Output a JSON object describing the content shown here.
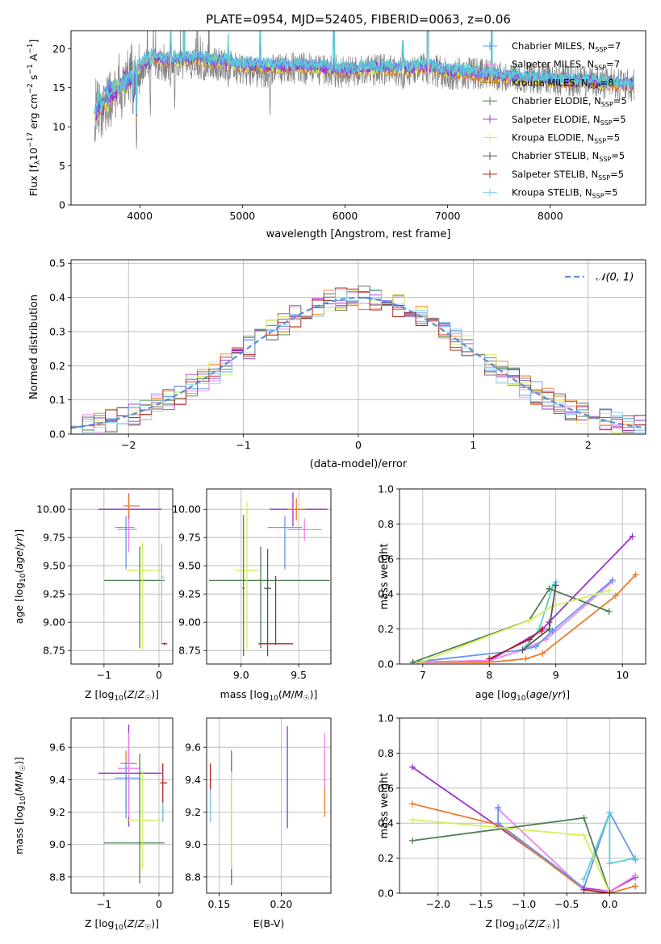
{
  "figure": {
    "title": "PLATE=0954, MJD=52405, FIBERID=0063, z=0.06"
  },
  "chart_data": [
    {
      "id": "spectrum",
      "type": "line",
      "xlabel": "wavelength [Angstrom, rest frame]",
      "ylabel": "Flux [f_λ 10^-17 erg cm^-2 s^-1 Å^-1]",
      "xlim": [
        3330,
        8930
      ],
      "ylim": [
        0,
        22.3
      ],
      "xticks": [
        4000,
        5000,
        6000,
        7000,
        8000
      ],
      "yticks": [
        0,
        5,
        10,
        15,
        20
      ],
      "grid": false,
      "legend_position": "top-right",
      "observed_color": "#808080",
      "observed_anchors": [
        [
          3560,
          11.5
        ],
        [
          3700,
          13
        ],
        [
          3800,
          14.5
        ],
        [
          3900,
          16.5
        ],
        [
          4000,
          17
        ],
        [
          4100,
          18.3
        ],
        [
          4300,
          17.5
        ],
        [
          4500,
          18
        ],
        [
          4800,
          18
        ],
        [
          5000,
          17.3
        ],
        [
          5200,
          17
        ],
        [
          5500,
          17.5
        ],
        [
          5800,
          17.3
        ],
        [
          6000,
          17
        ],
        [
          6300,
          17.3
        ],
        [
          6600,
          17
        ],
        [
          6800,
          17.5
        ],
        [
          7000,
          16.8
        ],
        [
          7200,
          16.8
        ],
        [
          7500,
          16.5
        ],
        [
          7800,
          16.3
        ],
        [
          8100,
          16
        ],
        [
          8400,
          15.7
        ],
        [
          8820,
          15.3
        ]
      ],
      "model_anchors": [
        [
          3560,
          12
        ],
        [
          3700,
          14
        ],
        [
          3850,
          15.5
        ],
        [
          3950,
          17
        ],
        [
          4100,
          19
        ],
        [
          4300,
          18.5
        ],
        [
          4500,
          18.8
        ],
        [
          4800,
          18.5
        ],
        [
          5000,
          18
        ],
        [
          5300,
          17.8
        ],
        [
          5600,
          17.9
        ],
        [
          6000,
          17.3
        ],
        [
          6300,
          17.6
        ],
        [
          6600,
          17.5
        ],
        [
          6800,
          17.8
        ],
        [
          7000,
          17.2
        ],
        [
          7200,
          17
        ],
        [
          7500,
          16.5
        ],
        [
          7800,
          16.3
        ],
        [
          8100,
          16
        ],
        [
          8400,
          15.8
        ],
        [
          8820,
          15.4
        ]
      ],
      "absorption_dips": [
        [
          3934,
          0.5
        ],
        [
          3969,
          0.3
        ],
        [
          4102,
          0.6
        ],
        [
          4300,
          0.8
        ],
        [
          4340,
          0.7
        ],
        [
          4431,
          6
        ],
        [
          4861,
          0.8
        ],
        [
          5175,
          1.2
        ],
        [
          5270,
          0.6
        ],
        [
          5890,
          1.0
        ],
        [
          6563,
          0.8
        ],
        [
          6810,
          3
        ],
        [
          7430,
          3
        ]
      ],
      "models": [
        {
          "name": "Chabrier MILES",
          "nssp": "7",
          "color": "#6495ed"
        },
        {
          "name": "Salpeter MILES",
          "nssp": "7",
          "color": "#ee82ee"
        },
        {
          "name": "Kroupa MILES",
          "nssp": "8",
          "color": "#b8860b"
        },
        {
          "name": "Chabrier ELODIE",
          "nssp": "5",
          "color": "#4f7f4f"
        },
        {
          "name": "Salpeter ELODIE",
          "nssp": "5",
          "color": "#9932cc"
        },
        {
          "name": "Kroupa ELODIE",
          "nssp": "5",
          "color": "#d4f05a"
        },
        {
          "name": "Chabrier STELIB",
          "nssp": "5",
          "color": "#555555"
        },
        {
          "name": "Salpeter STELIB",
          "nssp": "5",
          "color": "#b22222"
        },
        {
          "name": "Kroupa STELIB",
          "nssp": "5",
          "color": "#87ceeb"
        }
      ],
      "line_colors_drawn": [
        "#e87d2a",
        "#d4f05a",
        "#9932cc",
        "#6495ed",
        "#5aced4"
      ]
    },
    {
      "id": "residuals",
      "type": "histogram",
      "xlabel": "(data-model)/error",
      "ylabel": "Normed distribution",
      "xlim": [
        -2.5,
        2.5
      ],
      "ylim": [
        0,
        0.51
      ],
      "xticks": [
        -2,
        -1,
        0,
        1,
        2
      ],
      "yticks": [
        0.0,
        0.1,
        0.2,
        0.3,
        0.4,
        0.5
      ],
      "grid": true,
      "legend_position": "top-right",
      "reference_label": "𝒩(0, 1)",
      "reference_color": "#5b8fd6",
      "bin_width": 0.1,
      "bin_start": -2.5,
      "series_colors": [
        "#6495ed",
        "#ee82ee",
        "#e87d2a",
        "#4f7f4f",
        "#9932cc",
        "#d4f05a",
        "#555555",
        "#b22222",
        "#87ceeb"
      ]
    },
    {
      "id": "age-vs-Z",
      "type": "errorbar",
      "xlabel": "Z [log10(Z/Z☉)]",
      "ylabel": "age  [log10(age/yr)]",
      "xlim": [
        -1.6,
        0.25
      ],
      "ylim": [
        8.63,
        10.18
      ],
      "xticks": [
        -1,
        0
      ],
      "yticks": [
        8.75,
        9.0,
        9.25,
        9.5,
        9.75,
        10.0
      ],
      "grid": true,
      "points": [
        {
          "color": "#9932cc",
          "x": -0.55,
          "xerr": [
            0.55,
            0.6
          ],
          "y": 10.0,
          "yerr": [
            0.12,
            0.14
          ]
        },
        {
          "color": "#e87d2a",
          "x": -0.55,
          "xerr": [
            0.1,
            0.2
          ],
          "y": 10.03,
          "yerr": [
            0.1,
            0.1
          ]
        },
        {
          "color": "#ee82ee",
          "x": -0.55,
          "xerr": [
            0.2,
            0.15
          ],
          "y": 9.82,
          "yerr": [
            0.2,
            0.1
          ]
        },
        {
          "color": "#6495ed",
          "x": -0.6,
          "xerr": [
            0.2,
            0.15
          ],
          "y": 9.84,
          "yerr": [
            0.37,
            0.1
          ]
        },
        {
          "color": "#4f7f4f",
          "x": -0.35,
          "xerr": [
            0.65,
            0.45
          ],
          "y": 9.37,
          "yerr": [
            0.6,
            0.3
          ]
        },
        {
          "color": "#d4f05a",
          "x": -0.3,
          "xerr": [
            0.3,
            0.35
          ],
          "y": 9.46,
          "yerr": [
            0.7,
            0.25
          ]
        },
        {
          "color": "#87ceeb",
          "x": 0.05,
          "xerr": [
            0.02,
            0.05
          ],
          "y": 9.4,
          "yerr": [
            0.6,
            0.3
          ]
        },
        {
          "color": "#b22222",
          "x": 0.1,
          "xerr": [
            0.05,
            0.05
          ],
          "y": 8.81,
          "yerr": [
            0.01,
            0.01
          ]
        }
      ]
    },
    {
      "id": "age-vs-mass",
      "type": "errorbar",
      "xlabel": "mass [log10(M/M☉)]",
      "ylabel": "",
      "xlim": [
        8.7,
        9.78
      ],
      "ylim": [
        8.63,
        10.18
      ],
      "xticks": [
        9.0,
        9.5
      ],
      "yticks": [
        8.75,
        9.0,
        9.25,
        9.5,
        9.75,
        10.0
      ],
      "grid": true,
      "points": [
        {
          "color": "#9932cc",
          "x": 9.45,
          "xerr": [
            0.2,
            0.3
          ],
          "y": 10.0,
          "yerr": [
            0.15,
            0.15
          ]
        },
        {
          "color": "#e87d2a",
          "x": 9.48,
          "xerr": [
            0.08,
            0.08
          ],
          "y": 10.0,
          "yerr": [
            0.1,
            0.1
          ]
        },
        {
          "color": "#ee82ee",
          "x": 9.55,
          "xerr": [
            0.15,
            0.15
          ],
          "y": 9.82,
          "yerr": [
            0.1,
            0.1
          ]
        },
        {
          "color": "#6495ed",
          "x": 9.38,
          "xerr": [
            0.15,
            0.15
          ],
          "y": 9.84,
          "yerr": [
            0.37,
            0.1
          ]
        },
        {
          "color": "#4f7f4f",
          "x": 9.17,
          "xerr": [
            0.45,
            0.6
          ],
          "y": 9.37,
          "yerr": [
            0.6,
            0.3
          ]
        },
        {
          "color": "#d4f05a",
          "x": 9.05,
          "xerr": [
            0.1,
            0.1
          ],
          "y": 9.46,
          "yerr": [
            0.7,
            0.6
          ]
        },
        {
          "color": "#555555",
          "x": 9.23,
          "xerr": [
            0.03,
            0.03
          ],
          "y": 9.3,
          "yerr": [
            0.6,
            0.35
          ]
        },
        {
          "color": "#4f7f4f",
          "x": 9.02,
          "xerr": [
            0.01,
            0.01
          ],
          "y": 9.3,
          "yerr": [
            0.6,
            0.65
          ]
        },
        {
          "color": "#b22222",
          "x": 9.3,
          "xerr": [
            0.15,
            0.15
          ],
          "y": 8.81,
          "yerr": [
            0.01,
            0.6
          ]
        }
      ]
    },
    {
      "id": "weight-vs-age",
      "type": "line",
      "xlabel": "age  [log10(age/yr)]",
      "ylabel": "mass weight",
      "xlim": [
        6.65,
        10.35
      ],
      "ylim": [
        0,
        1
      ],
      "xticks": [
        7,
        8,
        9,
        10
      ],
      "yticks": [
        0.0,
        0.2,
        0.4,
        0.6,
        0.8,
        1.0
      ],
      "grid": true,
      "series": [
        {
          "color": "#9932cc",
          "x": [
            6.85,
            8.0,
            8.78,
            8.9,
            10.15
          ],
          "y": [
            0.01,
            0.02,
            0.19,
            0.24,
            0.73
          ]
        },
        {
          "color": "#e87d2a",
          "x": [
            6.85,
            8.0,
            8.55,
            8.8,
            9.9,
            10.2
          ],
          "y": [
            0.01,
            0.01,
            0.03,
            0.06,
            0.39,
            0.51
          ]
        },
        {
          "color": "#ee82ee",
          "x": [
            6.85,
            8.0,
            8.5,
            8.85,
            9.85
          ],
          "y": [
            0.01,
            0.02,
            0.08,
            0.14,
            0.47
          ]
        },
        {
          "color": "#6495ed",
          "x": [
            6.85,
            8.5,
            8.7,
            8.95,
            9.85
          ],
          "y": [
            0.01,
            0.08,
            0.1,
            0.19,
            0.48
          ]
        },
        {
          "color": "#5aced4",
          "x": [
            8.55,
            8.75,
            8.95,
            9.0
          ],
          "y": [
            0.1,
            0.2,
            0.44,
            0.47
          ]
        },
        {
          "color": "#4f7f4f",
          "x": [
            6.85,
            8.6,
            8.9,
            9.8
          ],
          "y": [
            0.01,
            0.25,
            0.43,
            0.3
          ]
        },
        {
          "color": "#d4f05a",
          "x": [
            6.9,
            8.6,
            8.95,
            9.8
          ],
          "y": [
            0.0,
            0.25,
            0.33,
            0.42
          ]
        },
        {
          "color": "#555555",
          "x": [
            8.5,
            8.9,
            9.0
          ],
          "y": [
            0.08,
            0.2,
            0.45
          ]
        },
        {
          "color": "#b22222",
          "x": [
            8.0,
            8.6,
            8.8
          ],
          "y": [
            0.03,
            0.14,
            0.2
          ]
        }
      ]
    },
    {
      "id": "mass-vs-Z",
      "type": "errorbar",
      "xlabel": "Z [log10(Z/Z☉)]",
      "ylabel": "mass [log10(M/M☉)]",
      "xlim": [
        -1.6,
        0.25
      ],
      "ylim": [
        8.7,
        9.78
      ],
      "xticks": [
        -1,
        0
      ],
      "yticks": [
        8.8,
        9.0,
        9.2,
        9.4,
        9.6
      ],
      "grid": true,
      "points": [
        {
          "color": "#9932cc",
          "x": -0.55,
          "xerr": [
            0.55,
            0.6
          ],
          "y": 9.44,
          "yerr": [
            0.33,
            0.3
          ]
        },
        {
          "color": "#e87d2a",
          "x": -0.6,
          "xerr": [
            0.1,
            0.2
          ],
          "y": 9.5,
          "yerr": [
            0.3,
            0.08
          ]
        },
        {
          "color": "#ee82ee",
          "x": -0.55,
          "xerr": [
            0.2,
            0.2
          ],
          "y": 9.47,
          "yerr": [
            0.3,
            0.22
          ]
        },
        {
          "color": "#6495ed",
          "x": -0.6,
          "xerr": [
            0.2,
            0.25
          ],
          "y": 9.41,
          "yerr": [
            0.25,
            0.1
          ]
        },
        {
          "color": "#4f7f4f",
          "x": -0.35,
          "xerr": [
            0.65,
            0.45
          ],
          "y": 9.01,
          "yerr": [
            0.25,
            0.55
          ]
        },
        {
          "color": "#d4f05a",
          "x": -0.3,
          "xerr": [
            0.3,
            0.35
          ],
          "y": 9.15,
          "yerr": [
            0.3,
            0.3
          ]
        },
        {
          "color": "#b22222",
          "x": 0.07,
          "xerr": [
            0.05,
            0.08
          ],
          "y": 9.38,
          "yerr": [
            0.24,
            0.12
          ]
        },
        {
          "color": "#87ceeb",
          "x": 0.07,
          "xerr": [
            0.03,
            0.03
          ],
          "y": 9.21,
          "yerr": [
            0.07,
            0.05
          ]
        }
      ]
    },
    {
      "id": "mass-vs-ebv",
      "type": "errorbar",
      "xlabel": "E(B-V)",
      "ylabel": "",
      "xlim": [
        0.14,
        0.24
      ],
      "ylim": [
        8.7,
        9.78
      ],
      "xticks": [
        0.15,
        0.2
      ],
      "yticks": [
        8.8,
        9.0,
        9.2,
        9.4,
        9.6
      ],
      "grid": true,
      "points": [
        {
          "color": "#b22222",
          "x": 0.143,
          "xerr": [
            0,
            0
          ],
          "y": 9.4,
          "yerr": [
            0.26,
            0.1
          ]
        },
        {
          "color": "#87ceeb",
          "x": 0.143,
          "xerr": [
            0,
            0
          ],
          "y": 9.22,
          "yerr": [
            0.08,
            0.12
          ]
        },
        {
          "color": "#4f7f4f",
          "x": 0.16,
          "xerr": [
            0,
            0
          ],
          "y": 9.4,
          "yerr": [
            0.65,
            0.18
          ]
        },
        {
          "color": "#d4f05a",
          "x": 0.16,
          "xerr": [
            0,
            0
          ],
          "y": 9.15,
          "yerr": [
            0.3,
            0.3
          ]
        },
        {
          "color": "#9932cc",
          "x": 0.205,
          "xerr": [
            0,
            0
          ],
          "y": 9.42,
          "yerr": [
            0.32,
            0.31
          ]
        },
        {
          "color": "#e87d2a",
          "x": 0.235,
          "xerr": [
            0,
            0
          ],
          "y": 9.44,
          "yerr": [
            0.27,
            0.14
          ]
        },
        {
          "color": "#ee82ee",
          "x": 0.235,
          "xerr": [
            0,
            0
          ],
          "y": 9.5,
          "yerr": [
            0.15,
            0.19
          ]
        }
      ]
    },
    {
      "id": "weight-vs-Z",
      "type": "line",
      "xlabel": "Z [log10(Z/Z☉)]",
      "ylabel": "mass weight",
      "xlim": [
        -2.45,
        0.42
      ],
      "ylim": [
        0,
        1
      ],
      "xticks": [
        -2.0,
        -1.5,
        -1.0,
        -0.5,
        0.0
      ],
      "yticks": [
        0.0,
        0.2,
        0.4,
        0.6,
        0.8,
        1.0
      ],
      "grid": true,
      "series": [
        {
          "color": "#9932cc",
          "x": [
            -2.3,
            -1.3,
            -0.3,
            0.0,
            0.3
          ],
          "y": [
            0.72,
            0.38,
            0.03,
            0.01,
            0.09
          ]
        },
        {
          "color": "#e87d2a",
          "x": [
            -2.3,
            -1.3,
            -0.3,
            0.0,
            0.3
          ],
          "y": [
            0.51,
            0.39,
            0.02,
            0.0,
            0.04
          ]
        },
        {
          "color": "#ee82ee",
          "x": [
            -1.3,
            -0.3,
            0.0,
            0.3
          ],
          "y": [
            0.48,
            0.02,
            0.01,
            0.1
          ]
        },
        {
          "color": "#6495ed",
          "x": [
            -1.3,
            -1.3,
            -0.3,
            0.0,
            0.3
          ],
          "y": [
            0.49,
            0.4,
            0.03,
            0.46,
            0.19
          ]
        },
        {
          "color": "#5aced4",
          "x": [
            -0.3,
            0.0,
            0.0,
            0.3
          ],
          "y": [
            0.08,
            0.46,
            0.17,
            0.2
          ]
        },
        {
          "color": "#4f7f4f",
          "x": [
            -2.3,
            -0.3,
            0.0
          ],
          "y": [
            0.3,
            0.43,
            0.0
          ]
        },
        {
          "color": "#d4f05a",
          "x": [
            -2.3,
            -0.3,
            0.0
          ],
          "y": [
            0.42,
            0.33,
            0.0
          ]
        },
        {
          "color": "#b22222",
          "x": [
            -0.3,
            0.0
          ],
          "y": [
            0.02,
            0.0
          ]
        }
      ]
    }
  ]
}
